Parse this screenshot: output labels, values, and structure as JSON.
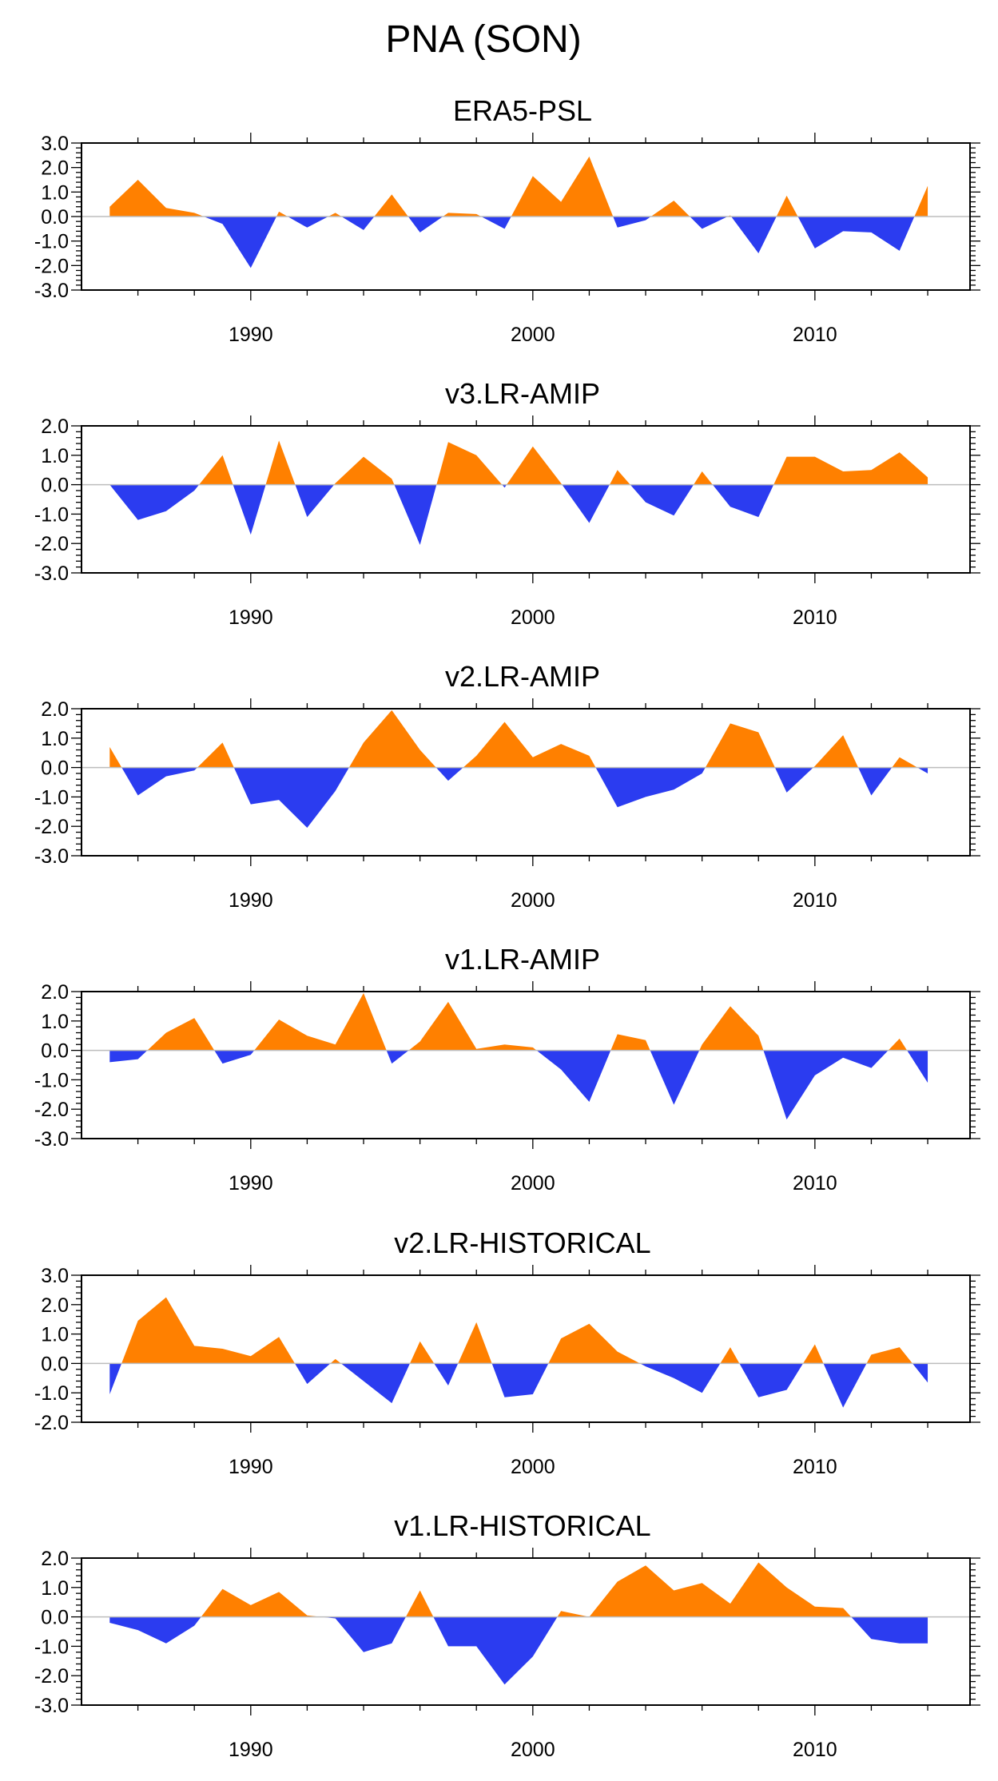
{
  "figure": {
    "title": "PNA (SON)"
  },
  "colors": {
    "positive": "#ff8000",
    "negative": "#2b3cf0",
    "zero_line": "#bdbdbd",
    "axes": "#000000"
  },
  "chart_data": [
    {
      "type": "area",
      "title": "ERA5-PSL",
      "x": [
        1985,
        1986,
        1987,
        1988,
        1989,
        1990,
        1991,
        1992,
        1993,
        1994,
        1995,
        1996,
        1997,
        1998,
        1999,
        2000,
        2001,
        2002,
        2003,
        2004,
        2005,
        2006,
        2007,
        2008,
        2009,
        2010,
        2011,
        2012,
        2013,
        2014
      ],
      "values": [
        0.4,
        1.5,
        0.35,
        0.15,
        -0.3,
        -2.1,
        0.2,
        -0.45,
        0.15,
        -0.55,
        0.9,
        -0.65,
        0.15,
        0.1,
        -0.5,
        1.65,
        0.6,
        2.45,
        -0.45,
        -0.15,
        0.65,
        -0.5,
        0.05,
        -1.5,
        0.85,
        -1.3,
        -0.6,
        -0.65,
        -1.4,
        1.25
      ],
      "xlim": [
        1984,
        2015.5
      ],
      "ylim": [
        -3.0,
        3.0
      ],
      "x_ticks": [
        "1990",
        "2000",
        "2010"
      ],
      "y_ticks": [
        "3.0",
        "2.0",
        "1.0",
        "0.0",
        "-1.0",
        "-2.0",
        "-3.0"
      ]
    },
    {
      "type": "area",
      "title": "v3.LR-AMIP",
      "x": [
        1985,
        1986,
        1987,
        1988,
        1989,
        1990,
        1991,
        1992,
        1993,
        1994,
        1995,
        1996,
        1997,
        1998,
        1999,
        2000,
        2001,
        2002,
        2003,
        2004,
        2005,
        2006,
        2007,
        2008,
        2009,
        2010,
        2011,
        2012,
        2013,
        2014
      ],
      "values": [
        0.0,
        -1.2,
        -0.9,
        -0.2,
        1.0,
        -1.7,
        1.5,
        -1.1,
        0.05,
        0.95,
        0.2,
        -2.05,
        1.45,
        1.0,
        -0.1,
        1.3,
        0.05,
        -1.3,
        0.5,
        -0.6,
        -1.05,
        0.45,
        -0.75,
        -1.1,
        0.95,
        0.95,
        0.45,
        0.5,
        1.1,
        0.25
      ],
      "xlim": [
        1984,
        2015.5
      ],
      "ylim": [
        -3.0,
        2.0
      ],
      "x_ticks": [
        "1990",
        "2000",
        "2010"
      ],
      "y_ticks": [
        "2.0",
        "1.0",
        "0.0",
        "-1.0",
        "-2.0",
        "-3.0"
      ]
    },
    {
      "type": "area",
      "title": "v2.LR-AMIP",
      "x": [
        1985,
        1986,
        1987,
        1988,
        1989,
        1990,
        1991,
        1992,
        1993,
        1994,
        1995,
        1996,
        1997,
        1998,
        1999,
        2000,
        2001,
        2002,
        2003,
        2004,
        2005,
        2006,
        2007,
        2008,
        2009,
        2010,
        2011,
        2012,
        2013,
        2014
      ],
      "values": [
        0.7,
        -0.95,
        -0.3,
        -0.1,
        0.85,
        -1.25,
        -1.1,
        -2.05,
        -0.8,
        0.85,
        1.95,
        0.6,
        -0.45,
        0.4,
        1.55,
        0.35,
        0.8,
        0.4,
        -1.35,
        -1.0,
        -0.75,
        -0.2,
        1.5,
        1.2,
        -0.85,
        0.05,
        1.1,
        -0.95,
        0.35,
        -0.2
      ],
      "xlim": [
        1984,
        2015.5
      ],
      "ylim": [
        -3.0,
        2.0
      ],
      "x_ticks": [
        "1990",
        "2000",
        "2010"
      ],
      "y_ticks": [
        "2.0",
        "1.0",
        "0.0",
        "-1.0",
        "-2.0",
        "-3.0"
      ]
    },
    {
      "type": "area",
      "title": "v1.LR-AMIP",
      "x": [
        1985,
        1986,
        1987,
        1988,
        1989,
        1990,
        1991,
        1992,
        1993,
        1994,
        1995,
        1996,
        1997,
        1998,
        1999,
        2000,
        2001,
        2002,
        2003,
        2004,
        2005,
        2006,
        2007,
        2008,
        2009,
        2010,
        2011,
        2012,
        2013,
        2014
      ],
      "values": [
        -0.4,
        -0.3,
        0.6,
        1.1,
        -0.45,
        -0.15,
        1.05,
        0.5,
        0.2,
        1.95,
        -0.45,
        0.3,
        1.65,
        0.05,
        0.2,
        0.1,
        -0.65,
        -1.75,
        0.55,
        0.35,
        -1.85,
        0.2,
        1.5,
        0.5,
        -2.35,
        -0.85,
        -0.25,
        -0.6,
        0.4,
        -1.1
      ],
      "xlim": [
        1984,
        2015.5
      ],
      "ylim": [
        -3.0,
        2.0
      ],
      "x_ticks": [
        "1990",
        "2000",
        "2010"
      ],
      "y_ticks": [
        "2.0",
        "1.0",
        "0.0",
        "-1.0",
        "-2.0",
        "-3.0"
      ]
    },
    {
      "type": "area",
      "title": "v2.LR-HISTORICAL",
      "x": [
        1985,
        1986,
        1987,
        1988,
        1989,
        1990,
        1991,
        1992,
        1993,
        1994,
        1995,
        1996,
        1997,
        1998,
        1999,
        2000,
        2001,
        2002,
        2003,
        2004,
        2005,
        2006,
        2007,
        2008,
        2009,
        2010,
        2011,
        2012,
        2013,
        2014
      ],
      "values": [
        -1.05,
        1.45,
        2.25,
        0.6,
        0.5,
        0.25,
        0.9,
        -0.7,
        0.15,
        -0.6,
        -1.35,
        0.75,
        -0.75,
        1.4,
        -1.15,
        -1.05,
        0.85,
        1.35,
        0.4,
        -0.1,
        -0.5,
        -1.0,
        0.55,
        -1.15,
        -0.9,
        0.65,
        -1.5,
        0.3,
        0.55,
        -0.65
      ],
      "xlim": [
        1984,
        2015.5
      ],
      "ylim": [
        -2.0,
        3.0
      ],
      "x_ticks": [
        "1990",
        "2000",
        "2010"
      ],
      "y_ticks": [
        "3.0",
        "2.0",
        "1.0",
        "0.0",
        "-1.0",
        "-2.0"
      ]
    },
    {
      "type": "area",
      "title": "v1.LR-HISTORICAL",
      "x": [
        1985,
        1986,
        1987,
        1988,
        1989,
        1990,
        1991,
        1992,
        1993,
        1994,
        1995,
        1996,
        1997,
        1998,
        1999,
        2000,
        2001,
        2002,
        2003,
        2004,
        2005,
        2006,
        2007,
        2008,
        2009,
        2010,
        2011,
        2012,
        2013,
        2014
      ],
      "values": [
        -0.2,
        -0.45,
        -0.9,
        -0.3,
        0.95,
        0.4,
        0.85,
        0.05,
        -0.05,
        -1.2,
        -0.9,
        0.9,
        -1.0,
        -1.0,
        -2.3,
        -1.35,
        0.2,
        0.0,
        1.2,
        1.75,
        0.9,
        1.15,
        0.45,
        1.85,
        1.0,
        0.35,
        0.3,
        -0.75,
        -0.9,
        -0.9
      ],
      "xlim": [
        1984,
        2015.5
      ],
      "ylim": [
        -3.0,
        2.0
      ],
      "x_ticks": [
        "1990",
        "2000",
        "2010"
      ],
      "y_ticks": [
        "2.0",
        "1.0",
        "0.0",
        "-1.0",
        "-2.0",
        "-3.0"
      ]
    }
  ]
}
